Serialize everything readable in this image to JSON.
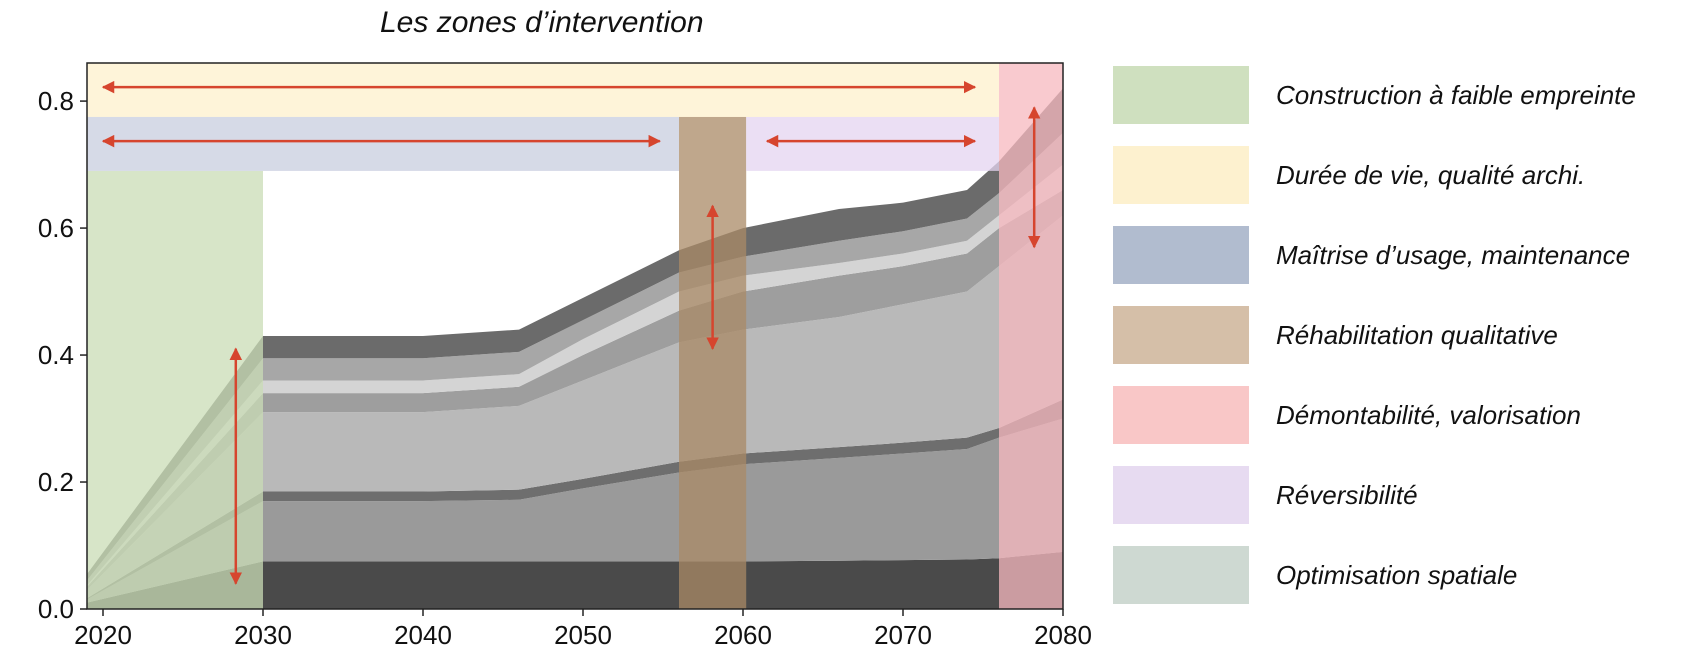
{
  "chart_data": {
    "type": "area",
    "title": "Les zones d’intervention",
    "xlabel": "",
    "ylabel": "",
    "xlim": [
      2019,
      2080
    ],
    "ylim": [
      0,
      0.86
    ],
    "x_ticks": [
      2020,
      2030,
      2040,
      2050,
      2060,
      2070,
      2080
    ],
    "y_ticks": [
      0.0,
      0.2,
      0.4,
      0.6,
      0.8
    ],
    "x_tick_labels": [
      "2020",
      "2030",
      "2040",
      "2050",
      "2060",
      "2070",
      "2080"
    ],
    "y_tick_labels": [
      "0.0",
      "0.2",
      "0.4",
      "0.6",
      "0.8"
    ],
    "x": [
      2019,
      2030,
      2040,
      2046,
      2050,
      2056,
      2060,
      2066,
      2070,
      2074,
      2076,
      2080
    ],
    "stack_levels": [
      [
        0.01,
        0.075,
        0.075,
        0.075,
        0.075,
        0.075,
        0.075,
        0.076,
        0.077,
        0.078,
        0.08,
        0.09
      ],
      [
        0.015,
        0.17,
        0.17,
        0.172,
        0.19,
        0.215,
        0.228,
        0.238,
        0.245,
        0.252,
        0.27,
        0.3
      ],
      [
        0.017,
        0.185,
        0.185,
        0.188,
        0.205,
        0.232,
        0.245,
        0.255,
        0.262,
        0.27,
        0.285,
        0.33
      ],
      [
        0.03,
        0.31,
        0.31,
        0.32,
        0.36,
        0.42,
        0.44,
        0.46,
        0.48,
        0.5,
        0.54,
        0.62
      ],
      [
        0.035,
        0.34,
        0.34,
        0.35,
        0.4,
        0.47,
        0.5,
        0.525,
        0.54,
        0.56,
        0.6,
        0.66
      ],
      [
        0.037,
        0.36,
        0.36,
        0.37,
        0.425,
        0.5,
        0.525,
        0.545,
        0.56,
        0.58,
        0.62,
        0.7
      ],
      [
        0.045,
        0.395,
        0.395,
        0.405,
        0.455,
        0.53,
        0.555,
        0.58,
        0.595,
        0.615,
        0.655,
        0.75
      ],
      [
        0.055,
        0.43,
        0.43,
        0.44,
        0.49,
        0.565,
        0.6,
        0.63,
        0.64,
        0.66,
        0.705,
        0.82
      ]
    ],
    "layer_colors": [
      "#4a4a4a",
      "#9a9a9a",
      "#6e6e6e",
      "#b9b9b9",
      "#9e9e9e",
      "#d4d4d4",
      "#a7a7a7",
      "#6b6b6b"
    ],
    "intervention_zones": [
      {
        "name": "Construction à faible empreinte",
        "x": [
          2019,
          2030
        ],
        "y": [
          0.0,
          0.69
        ],
        "color": "#c9dcb5"
      },
      {
        "name": "Durée de vie, qualité archi.",
        "x": [
          2019,
          2076
        ],
        "y": [
          0.775,
          0.86
        ],
        "color": "#fdf0cc"
      },
      {
        "name": "Maîtrise d’usage, maintenance",
        "x": [
          2019,
          2056
        ],
        "y": [
          0.69,
          0.775
        ],
        "color": "#c8ceDF"
      },
      {
        "name": "Réhabilitation qualitative",
        "x": [
          2056,
          2060.2
        ],
        "y": [
          0.0,
          0.775
        ],
        "color": "#a98a66"
      },
      {
        "name": "Démontabilité, valorisation",
        "x": [
          2076,
          2080
        ],
        "y": [
          0.0,
          0.86
        ],
        "color": "#f7b8bf"
      },
      {
        "name": "Réversibilité",
        "x": [
          2060.2,
          2076
        ],
        "y": [
          0.69,
          0.775
        ],
        "color": "#e4d4f0"
      }
    ],
    "arrows": [
      {
        "orientation": "horizontal",
        "x": [
          2020,
          2074.5
        ],
        "y": 0.822
      },
      {
        "orientation": "horizontal",
        "x": [
          2020,
          2054.8
        ],
        "y": 0.737
      },
      {
        "orientation": "horizontal",
        "x": [
          2061.5,
          2074.5
        ],
        "y": 0.737
      },
      {
        "orientation": "vertical",
        "x": 2028.3,
        "y": [
          0.04,
          0.41
        ]
      },
      {
        "orientation": "vertical",
        "x": 2058.1,
        "y": [
          0.41,
          0.635
        ]
      },
      {
        "orientation": "vertical",
        "x": 2078.2,
        "y": [
          0.57,
          0.79
        ]
      }
    ],
    "arrow_color": "#d6452e",
    "legend_position": "right",
    "grid": false
  },
  "legend": [
    {
      "label": "Construction à faible empreinte",
      "color": "#cfe0bf"
    },
    {
      "label": "Durée de vie, qualité archi.",
      "color": "#fdf1cf"
    },
    {
      "label": "Maîtrise d’usage, maintenance",
      "color": "#b1bccf"
    },
    {
      "label": "Réhabilitation qualitative",
      "color": "#d5bfa8"
    },
    {
      "label": "Démontabilité, valorisation",
      "color": "#f9c7c7"
    },
    {
      "label": "Réversibilité",
      "color": "#e7dbf1"
    },
    {
      "label": "Optimisation spatiale",
      "color": "#ced9d2"
    }
  ]
}
